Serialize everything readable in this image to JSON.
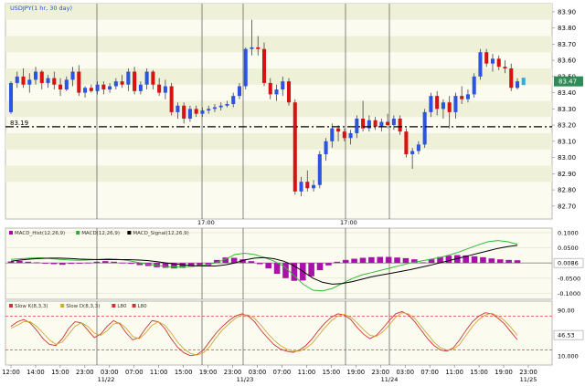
{
  "chart_data": [
    {
      "type": "candlestick",
      "title": "USDJPY(1 hr, 30 day)",
      "price_label": "83.19",
      "last_price_badge": "83.47",
      "y_ticks": [
        "83.90",
        "83.80",
        "83.70",
        "83.60",
        "83.50",
        "83.40",
        "83.30",
        "83.20",
        "83.10",
        "83.00",
        "82.90",
        "82.80",
        "82.70"
      ],
      "ylim": [
        82.62,
        83.95
      ],
      "reference_line": 83.19,
      "grid": "on",
      "sessions": [
        "17:00",
        "17:00"
      ],
      "candles": [
        {
          "o": 83.28,
          "h": 83.47,
          "l": 83.27,
          "c": 83.46
        },
        {
          "o": 83.46,
          "h": 83.53,
          "l": 83.43,
          "c": 83.5
        },
        {
          "o": 83.5,
          "h": 83.55,
          "l": 83.43,
          "c": 83.45
        },
        {
          "o": 83.45,
          "h": 83.52,
          "l": 83.4,
          "c": 83.48
        },
        {
          "o": 83.48,
          "h": 83.56,
          "l": 83.45,
          "c": 83.53
        },
        {
          "o": 83.53,
          "h": 83.54,
          "l": 83.42,
          "c": 83.46
        },
        {
          "o": 83.46,
          "h": 83.51,
          "l": 83.43,
          "c": 83.49
        },
        {
          "o": 83.49,
          "h": 83.53,
          "l": 83.42,
          "c": 83.45
        },
        {
          "o": 83.45,
          "h": 83.49,
          "l": 83.38,
          "c": 83.42
        },
        {
          "o": 83.42,
          "h": 83.5,
          "l": 83.41,
          "c": 83.48
        },
        {
          "o": 83.48,
          "h": 83.56,
          "l": 83.44,
          "c": 83.53
        },
        {
          "o": 83.53,
          "h": 83.57,
          "l": 83.38,
          "c": 83.4
        },
        {
          "o": 83.4,
          "h": 83.44,
          "l": 83.37,
          "c": 83.43
        },
        {
          "o": 83.43,
          "h": 83.45,
          "l": 83.4,
          "c": 83.41
        },
        {
          "o": 83.41,
          "h": 83.47,
          "l": 83.39,
          "c": 83.45
        },
        {
          "o": 83.45,
          "h": 83.47,
          "l": 83.39,
          "c": 83.42
        },
        {
          "o": 83.42,
          "h": 83.46,
          "l": 83.4,
          "c": 83.44
        },
        {
          "o": 83.44,
          "h": 83.49,
          "l": 83.42,
          "c": 83.47
        },
        {
          "o": 83.47,
          "h": 83.51,
          "l": 83.43,
          "c": 83.45
        },
        {
          "o": 83.45,
          "h": 83.55,
          "l": 83.41,
          "c": 83.53
        },
        {
          "o": 83.53,
          "h": 83.56,
          "l": 83.39,
          "c": 83.41
        },
        {
          "o": 83.41,
          "h": 83.47,
          "l": 83.39,
          "c": 83.45
        },
        {
          "o": 83.45,
          "h": 83.55,
          "l": 83.42,
          "c": 83.53
        },
        {
          "o": 83.53,
          "h": 83.54,
          "l": 83.42,
          "c": 83.45
        },
        {
          "o": 83.45,
          "h": 83.49,
          "l": 83.38,
          "c": 83.4
        },
        {
          "o": 83.4,
          "h": 83.48,
          "l": 83.36,
          "c": 83.44
        },
        {
          "o": 83.44,
          "h": 83.46,
          "l": 83.26,
          "c": 83.28
        },
        {
          "o": 83.28,
          "h": 83.34,
          "l": 83.24,
          "c": 83.32
        },
        {
          "o": 83.32,
          "h": 83.34,
          "l": 83.21,
          "c": 83.24
        },
        {
          "o": 83.24,
          "h": 83.32,
          "l": 83.22,
          "c": 83.3
        },
        {
          "o": 83.3,
          "h": 83.32,
          "l": 83.25,
          "c": 83.27
        },
        {
          "o": 83.27,
          "h": 83.31,
          "l": 83.25,
          "c": 83.29
        },
        {
          "o": 83.29,
          "h": 83.32,
          "l": 83.27,
          "c": 83.3
        },
        {
          "o": 83.3,
          "h": 83.33,
          "l": 83.28,
          "c": 83.31
        },
        {
          "o": 83.31,
          "h": 83.34,
          "l": 83.29,
          "c": 83.32
        },
        {
          "o": 83.32,
          "h": 83.35,
          "l": 83.31,
          "c": 83.33
        },
        {
          "o": 83.33,
          "h": 83.4,
          "l": 83.31,
          "c": 83.38
        },
        {
          "o": 83.38,
          "h": 83.46,
          "l": 83.36,
          "c": 83.44
        },
        {
          "o": 83.44,
          "h": 83.68,
          "l": 83.42,
          "c": 83.67
        },
        {
          "o": 83.67,
          "h": 83.85,
          "l": 83.63,
          "c": 83.68
        },
        {
          "o": 83.68,
          "h": 83.75,
          "l": 83.63,
          "c": 83.67
        },
        {
          "o": 83.67,
          "h": 83.71,
          "l": 83.44,
          "c": 83.46
        },
        {
          "o": 83.46,
          "h": 83.49,
          "l": 83.36,
          "c": 83.39
        },
        {
          "o": 83.39,
          "h": 83.45,
          "l": 83.35,
          "c": 83.42
        },
        {
          "o": 83.42,
          "h": 83.5,
          "l": 83.38,
          "c": 83.47
        },
        {
          "o": 83.47,
          "h": 83.49,
          "l": 83.32,
          "c": 83.34
        },
        {
          "o": 83.34,
          "h": 83.36,
          "l": 82.77,
          "c": 82.79
        },
        {
          "o": 82.79,
          "h": 82.88,
          "l": 82.76,
          "c": 82.85
        },
        {
          "o": 82.85,
          "h": 82.92,
          "l": 82.79,
          "c": 82.81
        },
        {
          "o": 82.81,
          "h": 82.86,
          "l": 82.79,
          "c": 82.83
        },
        {
          "o": 82.83,
          "h": 83.04,
          "l": 82.81,
          "c": 83.02
        },
        {
          "o": 83.02,
          "h": 83.12,
          "l": 82.98,
          "c": 83.1
        },
        {
          "o": 83.1,
          "h": 83.21,
          "l": 83.06,
          "c": 83.18
        },
        {
          "o": 83.18,
          "h": 83.2,
          "l": 83.1,
          "c": 83.16
        },
        {
          "o": 83.16,
          "h": 83.18,
          "l": 83.1,
          "c": 83.12
        },
        {
          "o": 83.12,
          "h": 83.17,
          "l": 83.08,
          "c": 83.15
        },
        {
          "o": 83.15,
          "h": 83.26,
          "l": 83.12,
          "c": 83.24
        },
        {
          "o": 83.24,
          "h": 83.35,
          "l": 83.16,
          "c": 83.18
        },
        {
          "o": 83.18,
          "h": 83.26,
          "l": 83.16,
          "c": 83.23
        },
        {
          "o": 83.23,
          "h": 83.25,
          "l": 83.17,
          "c": 83.19
        },
        {
          "o": 83.19,
          "h": 83.24,
          "l": 83.16,
          "c": 83.22
        },
        {
          "o": 83.22,
          "h": 83.27,
          "l": 83.18,
          "c": 83.2
        },
        {
          "o": 83.2,
          "h": 83.26,
          "l": 83.17,
          "c": 83.24
        },
        {
          "o": 83.24,
          "h": 83.26,
          "l": 83.14,
          "c": 83.16
        },
        {
          "o": 83.16,
          "h": 83.18,
          "l": 83.0,
          "c": 83.02
        },
        {
          "o": 83.02,
          "h": 83.06,
          "l": 82.93,
          "c": 83.04
        },
        {
          "o": 83.04,
          "h": 83.1,
          "l": 83.02,
          "c": 83.08
        },
        {
          "o": 83.08,
          "h": 83.3,
          "l": 83.06,
          "c": 83.28
        },
        {
          "o": 83.28,
          "h": 83.4,
          "l": 83.25,
          "c": 83.38
        },
        {
          "o": 83.38,
          "h": 83.41,
          "l": 83.26,
          "c": 83.3
        },
        {
          "o": 83.3,
          "h": 83.36,
          "l": 83.24,
          "c": 83.34
        },
        {
          "o": 83.34,
          "h": 83.38,
          "l": 83.18,
          "c": 83.28
        },
        {
          "o": 83.28,
          "h": 83.4,
          "l": 83.24,
          "c": 83.38
        },
        {
          "o": 83.38,
          "h": 83.44,
          "l": 83.33,
          "c": 83.36
        },
        {
          "o": 83.36,
          "h": 83.42,
          "l": 83.34,
          "c": 83.39
        },
        {
          "o": 83.39,
          "h": 83.52,
          "l": 83.37,
          "c": 83.5
        },
        {
          "o": 83.5,
          "h": 83.67,
          "l": 83.48,
          "c": 83.65
        },
        {
          "o": 83.65,
          "h": 83.67,
          "l": 83.56,
          "c": 83.58
        },
        {
          "o": 83.58,
          "h": 83.64,
          "l": 83.53,
          "c": 83.61
        },
        {
          "o": 83.61,
          "h": 83.63,
          "l": 83.54,
          "c": 83.56
        },
        {
          "o": 83.56,
          "h": 83.6,
          "l": 83.52,
          "c": 83.55
        },
        {
          "o": 83.55,
          "h": 83.58,
          "l": 83.41,
          "c": 83.43
        },
        {
          "o": 83.43,
          "h": 83.49,
          "l": 83.42,
          "c": 83.47
        }
      ]
    },
    {
      "type": "bar+line",
      "title_items": [
        {
          "label": "MACD_Hist(12,26,9)",
          "color": "#aa00aa"
        },
        {
          "label": "MACD(12,26,9)",
          "color": "#33aa33"
        },
        {
          "label": "MACD_Signal(12,26,9)",
          "color": "#000000"
        }
      ],
      "y_ticks": [
        "0.1000",
        "0.0500",
        "0.0000",
        "-0.0500",
        "-0.1000"
      ],
      "ylim": [
        -0.12,
        0.115
      ],
      "value_badge": "0.0086",
      "histogram": [
        0.005,
        0.007,
        0.004,
        0.002,
        -0.002,
        -0.004,
        -0.006,
        -0.003,
        -0.001,
        0.001,
        0.004,
        0.006,
        0.004,
        0.001,
        -0.003,
        -0.007,
        -0.01,
        -0.014,
        -0.016,
        -0.018,
        -0.016,
        -0.013,
        -0.01,
        -0.008,
        0.01,
        0.018,
        0.017,
        0.012,
        0.006,
        -0.004,
        -0.018,
        -0.036,
        -0.05,
        -0.059,
        -0.058,
        -0.044,
        -0.024,
        -0.008,
        0.004,
        0.01,
        0.014,
        0.017,
        0.019,
        0.02,
        0.02,
        0.018,
        0.016,
        0.012,
        0.002,
        0.012,
        0.02,
        0.024,
        0.026,
        0.025,
        0.022,
        0.019,
        0.015,
        0.012,
        0.01,
        0.009
      ],
      "macd": [
        0.012,
        0.014,
        0.016,
        0.017,
        0.015,
        0.012,
        0.01,
        0.009,
        0.01,
        0.012,
        0.014,
        0.012,
        0.008,
        0.002,
        -0.004,
        -0.008,
        -0.012,
        -0.013,
        -0.012,
        -0.01,
        -0.006,
        0.0,
        0.012,
        0.028,
        0.032,
        0.028,
        0.018,
        0.006,
        -0.01,
        -0.04,
        -0.07,
        -0.09,
        -0.092,
        -0.084,
        -0.068,
        -0.052,
        -0.04,
        -0.032,
        -0.024,
        -0.016,
        -0.008,
        0.0,
        0.006,
        0.012,
        0.018,
        0.026,
        0.036,
        0.048,
        0.06,
        0.07,
        0.074,
        0.07,
        0.062
      ],
      "signal": [
        0.006,
        0.01,
        0.013,
        0.015,
        0.016,
        0.016,
        0.015,
        0.013,
        0.012,
        0.011,
        0.011,
        0.011,
        0.011,
        0.01,
        0.008,
        0.004,
        0.0,
        -0.004,
        -0.007,
        -0.009,
        -0.01,
        -0.01,
        -0.006,
        0.0,
        0.01,
        0.016,
        0.018,
        0.014,
        0.006,
        -0.008,
        -0.028,
        -0.05,
        -0.064,
        -0.07,
        -0.068,
        -0.062,
        -0.054,
        -0.046,
        -0.04,
        -0.034,
        -0.028,
        -0.022,
        -0.015,
        -0.008,
        0.0,
        0.008,
        0.016,
        0.024,
        0.032,
        0.04,
        0.048,
        0.054,
        0.058
      ]
    },
    {
      "type": "line",
      "title_items": [
        {
          "label": "Slow K(8,3,3)",
          "color": "#cc3333"
        },
        {
          "label": "Slow D(8,3,3)",
          "color": "#ccaa33"
        },
        {
          "label": "L80",
          "color": "#cc3333"
        },
        {
          "label": "L80",
          "color": "#cc3333"
        }
      ],
      "y_ticks": [
        "90.00",
        "46.53",
        "10.000"
      ],
      "ylim": [
        0,
        100
      ],
      "upper_line": 80,
      "lower_line": 20,
      "slow_k": [
        62,
        70,
        74,
        68,
        55,
        40,
        30,
        28,
        40,
        58,
        70,
        68,
        55,
        42,
        48,
        62,
        72,
        66,
        50,
        38,
        42,
        58,
        72,
        70,
        58,
        40,
        25,
        15,
        10,
        12,
        20,
        35,
        50,
        62,
        72,
        80,
        84,
        80,
        70,
        55,
        42,
        30,
        22,
        18,
        16,
        20,
        28,
        40,
        55,
        68,
        78,
        84,
        82,
        74,
        60,
        48,
        40,
        46,
        58,
        72,
        84,
        88,
        82,
        70,
        55,
        40,
        28,
        20,
        18,
        24,
        38,
        55,
        70,
        80,
        86,
        84,
        76,
        66,
        52,
        38
      ],
      "slow_d": [
        58,
        64,
        70,
        70,
        62,
        50,
        38,
        30,
        34,
        48,
        62,
        68,
        62,
        50,
        46,
        54,
        66,
        68,
        58,
        44,
        40,
        50,
        64,
        70,
        64,
        50,
        34,
        22,
        14,
        11,
        15,
        26,
        42,
        56,
        66,
        76,
        82,
        82,
        76,
        64,
        50,
        38,
        28,
        22,
        18,
        18,
        23,
        32,
        46,
        60,
        72,
        80,
        83,
        78,
        68,
        56,
        46,
        44,
        52,
        64,
        78,
        86,
        84,
        76,
        62,
        48,
        34,
        24,
        20,
        21,
        30,
        46,
        62,
        74,
        82,
        85,
        80,
        72,
        60,
        46
      ]
    }
  ],
  "x_labels": [
    "12:00",
    "14:00",
    "15:00",
    "23:00",
    "03:00",
    "07:00",
    "11:00",
    "15:00",
    "19:00",
    "23:00",
    "03:00",
    "07:00",
    "11:00",
    "15:00",
    "19:00",
    "23:00",
    "03:00",
    "07:00",
    "11:00",
    "15:00",
    "19:00",
    "23:00"
  ],
  "date_labels": [
    "11/22",
    "11/23",
    "11/24",
    "11/25"
  ]
}
